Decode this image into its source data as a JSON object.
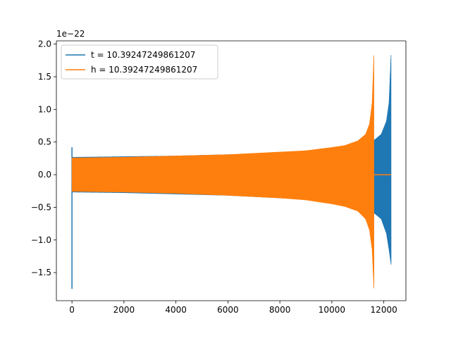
{
  "chart_data": {
    "type": "line",
    "title": "",
    "xlabel": "",
    "ylabel": "",
    "y_scale_label": "1e−22",
    "xlim": [
      -600,
      12850
    ],
    "ylim": [
      -1.93,
      2.05
    ],
    "x_ticks": [
      0,
      2000,
      4000,
      6000,
      8000,
      10000,
      12000
    ],
    "x_tick_labels": [
      "0",
      "2000",
      "4000",
      "6000",
      "8000",
      "10000",
      "12000"
    ],
    "y_ticks": [
      -1.5,
      -1.0,
      -0.5,
      0.0,
      0.5,
      1.0,
      1.5,
      2.0
    ],
    "y_tick_labels": [
      "−1.5",
      "−1.0",
      "−0.5",
      "0.0",
      "0.5",
      "1.0",
      "1.5",
      "2.0"
    ],
    "grid": false,
    "legend_position": "top-left",
    "series": [
      {
        "name": "t = 10.39247249861207",
        "color": "#1f77b4",
        "envelope": {
          "x": [
            0,
            2000,
            4000,
            6000,
            8000,
            9000,
            10000,
            10800,
            11200,
            11600,
            11900,
            12100,
            12200,
            12280
          ],
          "upper": [
            0.27,
            0.28,
            0.29,
            0.31,
            0.33,
            0.35,
            0.38,
            0.42,
            0.46,
            0.52,
            0.62,
            0.82,
            1.1,
            1.87
          ],
          "lower": [
            -0.27,
            -0.28,
            -0.3,
            -0.32,
            -0.36,
            -0.38,
            -0.42,
            -0.47,
            -0.52,
            -0.58,
            -0.68,
            -0.9,
            -1.15,
            -1.38
          ]
        },
        "start_spike": {
          "x": 0,
          "max": 0.42,
          "min": -1.75
        },
        "end_value": 0.0
      },
      {
        "name": "h = 10.39247249861207",
        "color": "#ff7f0e",
        "envelope": {
          "x": [
            0,
            2000,
            4000,
            6000,
            8000,
            9000,
            10000,
            10500,
            11000,
            11300,
            11450,
            11550,
            11620
          ],
          "upper": [
            0.26,
            0.27,
            0.29,
            0.31,
            0.35,
            0.37,
            0.42,
            0.45,
            0.52,
            0.62,
            0.78,
            1.1,
            1.87
          ],
          "lower": [
            -0.26,
            -0.27,
            -0.29,
            -0.32,
            -0.36,
            -0.39,
            -0.45,
            -0.49,
            -0.56,
            -0.68,
            -0.85,
            -1.15,
            -1.75
          ]
        },
        "tail": {
          "x_start": 11620,
          "x_end": 12280,
          "value": 0.0
        }
      }
    ]
  }
}
